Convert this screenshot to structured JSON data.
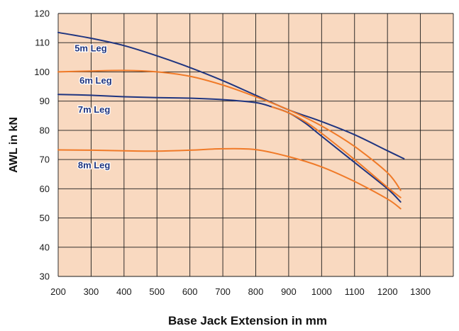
{
  "chart_data": {
    "type": "line",
    "title": "",
    "xlabel": "Base Jack Extension in mm",
    "ylabel": "AWL in kN",
    "xlim": [
      200,
      1400
    ],
    "ylim": [
      30,
      120
    ],
    "x_ticks": [
      200,
      300,
      400,
      500,
      600,
      700,
      800,
      900,
      1000,
      1100,
      1200,
      1300
    ],
    "y_ticks": [
      30,
      40,
      50,
      60,
      70,
      80,
      90,
      100,
      110,
      120
    ],
    "grid": true,
    "colors": {
      "background": "#f9d9c0",
      "grid": "#1a1a1a",
      "navy": "#1f3580",
      "orange": "#f07a28",
      "label_text": "#1f3580"
    },
    "series": [
      {
        "name": "5m Leg",
        "color": "navy",
        "points": [
          [
            200,
            113.5
          ],
          [
            300,
            111.5
          ],
          [
            400,
            109
          ],
          [
            500,
            105.5
          ],
          [
            600,
            101.5
          ],
          [
            700,
            97
          ],
          [
            800,
            92
          ],
          [
            900,
            87
          ],
          [
            1000,
            83
          ],
          [
            1100,
            78.5
          ],
          [
            1200,
            73
          ],
          [
            1250,
            70.3
          ]
        ]
      },
      {
        "name": "6m Leg",
        "color": "orange",
        "points": [
          [
            200,
            100
          ],
          [
            300,
            100.3
          ],
          [
            400,
            100.5
          ],
          [
            500,
            100
          ],
          [
            600,
            98.5
          ],
          [
            700,
            95.5
          ],
          [
            800,
            91.5
          ],
          [
            900,
            87
          ],
          [
            1000,
            81.5
          ],
          [
            1100,
            74.5
          ],
          [
            1200,
            65.5
          ],
          [
            1240,
            59.5
          ]
        ]
      },
      {
        "name": "7m Leg",
        "color": "navy",
        "points": [
          [
            200,
            92.3
          ],
          [
            300,
            92
          ],
          [
            400,
            91.5
          ],
          [
            500,
            91.2
          ],
          [
            600,
            91
          ],
          [
            700,
            90.5
          ],
          [
            800,
            89.5
          ],
          [
            850,
            88
          ],
          [
            900,
            86
          ],
          [
            950,
            82.5
          ],
          [
            1000,
            78
          ],
          [
            1100,
            69
          ],
          [
            1200,
            60
          ],
          [
            1240,
            55.5
          ]
        ]
      },
      {
        "name": "7m Leg orange",
        "color": "orange",
        "points": [
          [
            850,
            88
          ],
          [
            900,
            86
          ],
          [
            950,
            83
          ],
          [
            1000,
            79
          ],
          [
            1100,
            70
          ],
          [
            1200,
            60.5
          ],
          [
            1240,
            57
          ]
        ]
      },
      {
        "name": "8m Leg",
        "color": "orange",
        "points": [
          [
            200,
            73.3
          ],
          [
            300,
            73.2
          ],
          [
            400,
            73
          ],
          [
            500,
            72.9
          ],
          [
            600,
            73.2
          ],
          [
            700,
            73.7
          ],
          [
            800,
            73.4
          ],
          [
            900,
            71
          ],
          [
            1000,
            67.5
          ],
          [
            1100,
            62.5
          ],
          [
            1200,
            56.5
          ],
          [
            1240,
            53.2
          ]
        ]
      }
    ],
    "labels": [
      {
        "text": "5m Leg",
        "x": 250,
        "y": 108
      },
      {
        "text": "6m Leg",
        "x": 265,
        "y": 97
      },
      {
        "text": "7m Leg",
        "x": 260,
        "y": 87
      },
      {
        "text": "8m Leg",
        "x": 260,
        "y": 68
      }
    ]
  }
}
